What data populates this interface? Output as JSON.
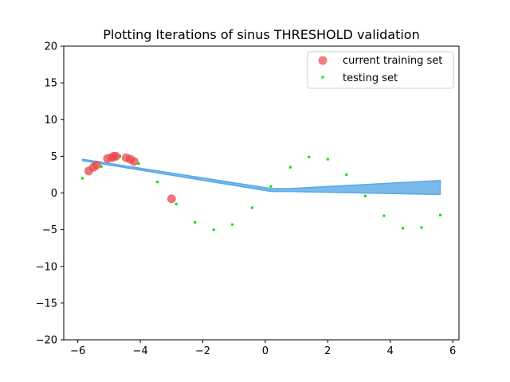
{
  "chart_data": {
    "type": "scatter",
    "title": "Plotting Iterations of sinus THRESHOLD validation",
    "xlabel": "",
    "ylabel": "",
    "xlim": [
      -6.45,
      6.2
    ],
    "ylim": [
      -20,
      20
    ],
    "xticks": [
      -6,
      -4,
      -2,
      0,
      2,
      4,
      6
    ],
    "yticks": [
      -20,
      -15,
      -10,
      -5,
      0,
      5,
      10,
      15,
      20
    ],
    "xtick_labels": [
      "−6",
      "−4",
      "−2",
      "0",
      "2",
      "4",
      "6"
    ],
    "ytick_labels": [
      "−20",
      "−15",
      "−10",
      "−5",
      "0",
      "5",
      "10",
      "15",
      "20"
    ],
    "grid": false,
    "legend_position": "top-right",
    "series": [
      {
        "name": "current training set",
        "kind": "points",
        "color": "#e8474a",
        "x": [
          -5.65,
          -5.5,
          -5.4,
          -5.05,
          -4.92,
          -4.85,
          -4.78,
          -4.45,
          -4.32,
          -4.2,
          -3.0
        ],
        "y": [
          3.0,
          3.5,
          3.8,
          4.7,
          4.8,
          5.0,
          5.0,
          4.8,
          4.6,
          4.3,
          -0.8
        ]
      },
      {
        "name": "testing set",
        "kind": "points",
        "color": "#00e000",
        "x": [
          -5.85,
          -5.25,
          -4.65,
          -4.05,
          -3.45,
          -2.85,
          -2.25,
          -1.65,
          -1.05,
          -0.42,
          0.18,
          0.8,
          1.4,
          2.0,
          2.6,
          3.2,
          3.8,
          4.4,
          5.0,
          5.6
        ],
        "y": [
          2.0,
          3.6,
          5.0,
          4.0,
          1.5,
          -1.5,
          -4.0,
          -5.0,
          -4.3,
          -2.0,
          0.9,
          3.5,
          4.9,
          4.6,
          2.5,
          -0.4,
          -3.1,
          -4.8,
          -4.7,
          -3.0
        ]
      },
      {
        "kind": "band",
        "color": "#59a9e6",
        "x": [
          -5.85,
          0.2,
          0.8,
          5.6
        ],
        "upper": [
          4.6,
          0.6,
          0.6,
          1.7
        ],
        "lower": [
          4.4,
          0.2,
          0.2,
          -0.2
        ]
      }
    ]
  }
}
